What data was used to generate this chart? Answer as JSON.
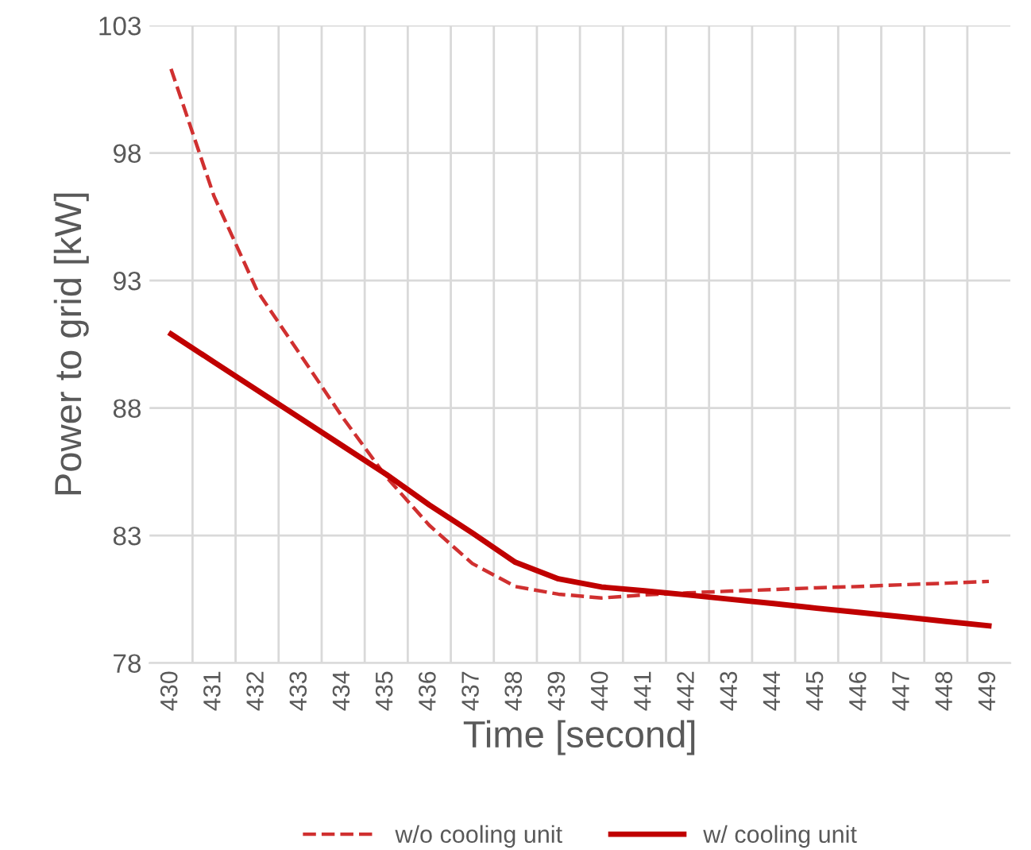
{
  "chart_data": {
    "type": "line",
    "xlabel": "Time [second]",
    "ylabel": "Power to grid [kW]",
    "categories": [
      "430",
      "431",
      "432",
      "433",
      "434",
      "435",
      "436",
      "437",
      "438",
      "439",
      "440",
      "441",
      "442",
      "443",
      "444",
      "445",
      "446",
      "447",
      "448",
      "449"
    ],
    "series": [
      {
        "name": "w/o cooling unit",
        "color": "#d03030",
        "line_style": "dashed",
        "values": [
          101.3,
          96.3,
          92.6,
          90.1,
          87.6,
          85.3,
          83.4,
          81.9,
          81.0,
          80.7,
          80.55,
          80.67,
          80.75,
          80.82,
          80.88,
          80.95,
          81.0,
          81.07,
          81.13,
          81.2
        ]
      },
      {
        "name": "w/ cooling unit",
        "color": "#c00000",
        "line_style": "solid",
        "values": [
          90.9,
          89.8,
          88.7,
          87.6,
          86.5,
          85.4,
          84.2,
          83.1,
          81.95,
          81.3,
          80.98,
          80.83,
          80.67,
          80.5,
          80.33,
          80.15,
          79.98,
          79.81,
          79.63,
          79.46
        ]
      }
    ],
    "ylim": [
      78,
      103
    ],
    "yticks": [
      78,
      83,
      88,
      93,
      98,
      103
    ],
    "grid": true,
    "legend": "bottom"
  }
}
